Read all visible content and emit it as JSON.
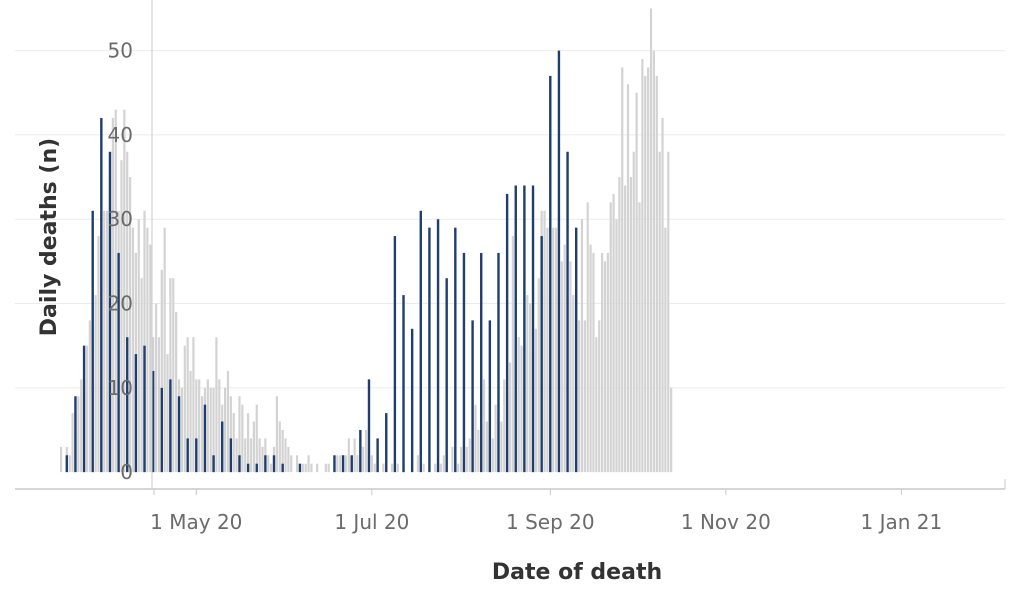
{
  "chart_data": {
    "type": "bar",
    "title": "",
    "xlabel": "Date of death",
    "ylabel": "Daily deaths (n)",
    "x_axis": {
      "type": "date",
      "range": [
        "2020-02-28",
        "2021-02-06"
      ]
    },
    "ylim": [
      -2,
      56
    ],
    "yticks": [
      0,
      10,
      20,
      30,
      40,
      50
    ],
    "xticks": [
      {
        "date": "2020-05-01",
        "label": "1 May 20"
      },
      {
        "date": "2020-07-01",
        "label": "1 Jul 20"
      },
      {
        "date": "2020-09-01",
        "label": "1 Sep 20"
      },
      {
        "date": "2020-11-01",
        "label": "1 Nov 20"
      },
      {
        "date": "2021-01-01",
        "label": "1 Jan 21"
      }
    ],
    "grid": "horizontal",
    "colors": {
      "daily": "#d3d3d3",
      "weekly": "#1f3e6e",
      "grid": "#ebebeb",
      "axis": "#c8c8c8"
    },
    "series": [
      {
        "date_start": "2020-03-15",
        "step_days": 1,
        "values": [
          3,
          0,
          3,
          2,
          7,
          5,
          9,
          11,
          11,
          15,
          18,
          15,
          21,
          28,
          30,
          31,
          31,
          35,
          42,
          43,
          31,
          37,
          43,
          38,
          35,
          29,
          26,
          30,
          23,
          31,
          29,
          27,
          16,
          20,
          16,
          24,
          29,
          14,
          23,
          23,
          19,
          11,
          10,
          15,
          16,
          12,
          16,
          11,
          11,
          9,
          10,
          11,
          10,
          10,
          16,
          11,
          8,
          10,
          12,
          9,
          7,
          4,
          9,
          8,
          4,
          7,
          4,
          6,
          8,
          4,
          3,
          4,
          2,
          1,
          3,
          9,
          6,
          5,
          4,
          3,
          2,
          0,
          2,
          1,
          1,
          1,
          2,
          1,
          0,
          1,
          0,
          0,
          1,
          1,
          0,
          0,
          2,
          2,
          2,
          2,
          4,
          2,
          4,
          2,
          4,
          3,
          5,
          2,
          2,
          1,
          1,
          0,
          1,
          0,
          0,
          1,
          1,
          1,
          0,
          1,
          0,
          0,
          0,
          0,
          2,
          0,
          1,
          0,
          0,
          0,
          1,
          1,
          1,
          2,
          2,
          0,
          3,
          3,
          1,
          3,
          4,
          3,
          4,
          6,
          8,
          5,
          10,
          11,
          6,
          4,
          4,
          8,
          7,
          6,
          11,
          13,
          13,
          28,
          28,
          16,
          15,
          23,
          21,
          20,
          14,
          17,
          23,
          31,
          31,
          29,
          29,
          29,
          29,
          30,
          25,
          27,
          23,
          25,
          21,
          28,
          18,
          30,
          18,
          32,
          27,
          26,
          16,
          18,
          26,
          25,
          26,
          32,
          33,
          30,
          35,
          48,
          34,
          46,
          35,
          38,
          45,
          32,
          49,
          47,
          48,
          55,
          50,
          47,
          38,
          42,
          29,
          38,
          10
        ]
      },
      {
        "date_start": "2020-03-17",
        "step_days": 3,
        "values": [
          2,
          9,
          15,
          31,
          42,
          38,
          26,
          16,
          14,
          15,
          12,
          10,
          11,
          9,
          4,
          4,
          8,
          2,
          6,
          4,
          2,
          1,
          1,
          2,
          2,
          1,
          0,
          1,
          0,
          0,
          0,
          2,
          2,
          2,
          5,
          11,
          4,
          7,
          28,
          21,
          17,
          31,
          29,
          30,
          23,
          29,
          26,
          18,
          26,
          18,
          26,
          33,
          34,
          34,
          34,
          28,
          47,
          50,
          38,
          29
        ]
      }
    ]
  }
}
